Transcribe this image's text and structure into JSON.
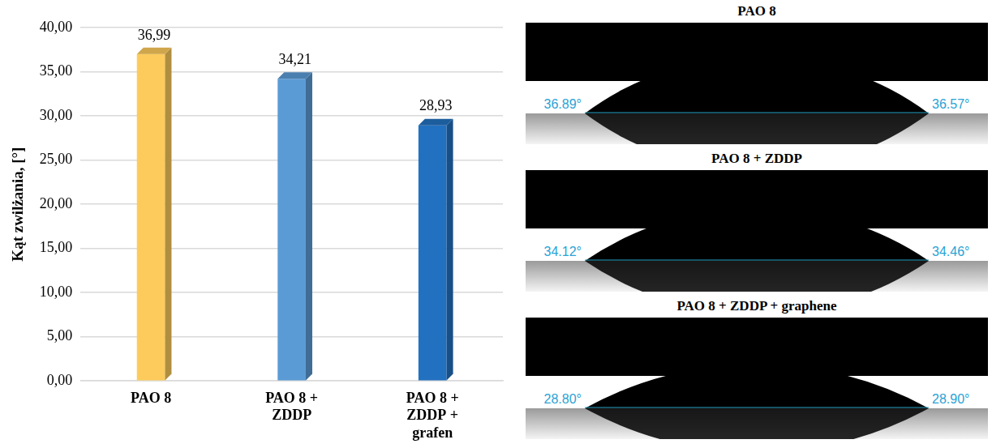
{
  "chart_data": {
    "type": "bar",
    "y_label": "Kąt zwilżania, [°]",
    "categories": [
      "PAO 8",
      "PAO 8 + ZDDP",
      "PAO 8 + ZDDP + grafen"
    ],
    "values": [
      36.99,
      34.21,
      28.93
    ],
    "value_labels": [
      "36,99",
      "34,21",
      "28,93"
    ],
    "colors": [
      "#fccb5b",
      "#5b9bd5",
      "#2271c0"
    ],
    "ylim": [
      0,
      40
    ],
    "yticks": [
      {
        "value": 0,
        "label": "0,00"
      },
      {
        "value": 5,
        "label": "5,00"
      },
      {
        "value": 10,
        "label": "10,00"
      },
      {
        "value": 15,
        "label": "15,00"
      },
      {
        "value": 20,
        "label": "20,00"
      },
      {
        "value": 25,
        "label": "25,00"
      },
      {
        "value": 30,
        "label": "30,00"
      },
      {
        "value": 35,
        "label": "35,00"
      },
      {
        "value": 40,
        "label": "40,00"
      }
    ],
    "grid": true,
    "data_labels": true
  },
  "droplet_images": [
    {
      "title": "PAO 8",
      "left_angle": {
        "value": 36.89,
        "label": "36.89°"
      },
      "right_angle": {
        "value": 36.57,
        "label": "36.57°"
      }
    },
    {
      "title": "PAO 8 + ZDDP",
      "left_angle": {
        "value": 34.12,
        "label": "34.12°"
      },
      "right_angle": {
        "value": 34.46,
        "label": "34.46°"
      }
    },
    {
      "title": "PAO 8 + ZDDP + graphene",
      "left_angle": {
        "value": 28.8,
        "label": "28.80°"
      },
      "right_angle": {
        "value": 28.9,
        "label": "28.90°"
      }
    }
  ]
}
